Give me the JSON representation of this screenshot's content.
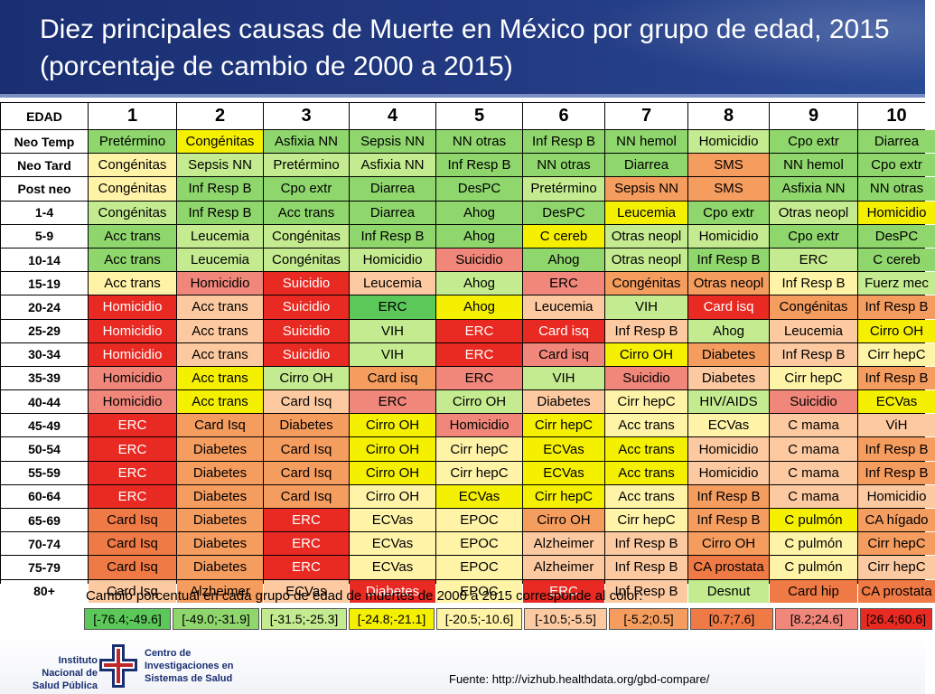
{
  "title": "Diez principales causas de Muerte en México por grupo de edad, 2015 (porcentaje de cambio de 2000 a 2015)",
  "table": {
    "header": [
      "EDAD",
      "1",
      "2",
      "3",
      "4",
      "5",
      "6",
      "7",
      "8",
      "9",
      "10"
    ],
    "palette": {
      "g1": "#5cc85a",
      "g2": "#8fd66c",
      "g3": "#c4eb8f",
      "y": "#f5f000",
      "yo": "#fff3a8",
      "lo": "#fcc9a0",
      "o": "#f59c5f",
      "do": "#f07a45",
      "pr": "#f0877a",
      "r": "#e82a22"
    },
    "rows": [
      {
        "age": "Neo Temp",
        "cells": [
          [
            "Pretérmino",
            "g2"
          ],
          [
            "Congénitas",
            "y"
          ],
          [
            "Asfixia NN",
            "g2"
          ],
          [
            "Sepsis NN",
            "g2"
          ],
          [
            "NN otras",
            "g2"
          ],
          [
            "Inf Resp B",
            "g2"
          ],
          [
            "NN hemol",
            "g2"
          ],
          [
            "Homicidio",
            "g3"
          ],
          [
            "Cpo extr",
            "g2"
          ],
          [
            "Diarrea",
            "g2"
          ]
        ]
      },
      {
        "age": "Neo Tard",
        "cells": [
          [
            "Congénitas",
            "yo"
          ],
          [
            "Sepsis NN",
            "g3"
          ],
          [
            "Pretérmino",
            "g3"
          ],
          [
            "Asfixia NN",
            "g3"
          ],
          [
            "Inf Resp B",
            "g2"
          ],
          [
            "NN otras",
            "g2"
          ],
          [
            "Diarrea",
            "g2"
          ],
          [
            "SMS",
            "o"
          ],
          [
            "NN hemol",
            "g2"
          ],
          [
            "Cpo extr",
            "g2"
          ]
        ]
      },
      {
        "age": "Post neo",
        "cells": [
          [
            "Congénitas",
            "yo"
          ],
          [
            "Inf Resp B",
            "g2"
          ],
          [
            "Cpo extr",
            "g2"
          ],
          [
            "Diarrea",
            "g2"
          ],
          [
            "DesPC",
            "g2"
          ],
          [
            "Pretérmino",
            "g3"
          ],
          [
            "Sepsis NN",
            "o"
          ],
          [
            "SMS",
            "o"
          ],
          [
            "Asfixia NN",
            "g2"
          ],
          [
            "NN otras",
            "g2"
          ]
        ]
      },
      {
        "age": "1-4",
        "cells": [
          [
            "Congénitas",
            "g3"
          ],
          [
            "Inf Resp B",
            "g2"
          ],
          [
            "Acc trans",
            "g2"
          ],
          [
            "Diarrea",
            "g2"
          ],
          [
            "Ahog",
            "g2"
          ],
          [
            "DesPC",
            "g2"
          ],
          [
            "Leucemia",
            "y"
          ],
          [
            "Cpo extr",
            "g2"
          ],
          [
            "Otras neopl",
            "g3"
          ],
          [
            "Homicidio",
            "y"
          ]
        ]
      },
      {
        "age": "5-9",
        "cells": [
          [
            "Acc trans",
            "g2"
          ],
          [
            "Leucemia",
            "g3"
          ],
          [
            "Congénitas",
            "g3"
          ],
          [
            "Inf Resp B",
            "g2"
          ],
          [
            "Ahog",
            "g2"
          ],
          [
            "C cereb",
            "y"
          ],
          [
            "Otras neopl",
            "g3"
          ],
          [
            "Homicidio",
            "g3"
          ],
          [
            "Cpo extr",
            "g2"
          ],
          [
            "DesPC",
            "g2"
          ]
        ]
      },
      {
        "age": "10-14",
        "cells": [
          [
            "Acc trans",
            "g2"
          ],
          [
            "Leucemia",
            "g3"
          ],
          [
            "Congénitas",
            "g3"
          ],
          [
            "Homicidio",
            "g3"
          ],
          [
            "Suicidio",
            "pr"
          ],
          [
            "Ahog",
            "g2"
          ],
          [
            "Otras neopl",
            "g3"
          ],
          [
            "Inf Resp B",
            "g2"
          ],
          [
            "ERC",
            "g3"
          ],
          [
            "C cereb",
            "g2"
          ]
        ]
      },
      {
        "age": "15-19",
        "cells": [
          [
            "Acc trans",
            "yo"
          ],
          [
            "Homicidio",
            "pr"
          ],
          [
            "Suicidio",
            "r"
          ],
          [
            "Leucemia",
            "lo"
          ],
          [
            "Ahog",
            "g3"
          ],
          [
            "ERC",
            "pr"
          ],
          [
            "Congénitas",
            "o"
          ],
          [
            "Otras neopl",
            "o"
          ],
          [
            "Inf Resp B",
            "yo"
          ],
          [
            "Fuerz mec",
            "g3"
          ]
        ]
      },
      {
        "age": "20-24",
        "cells": [
          [
            "Homicidio",
            "r"
          ],
          [
            "Acc trans",
            "lo"
          ],
          [
            "Suicidio",
            "r"
          ],
          [
            "ERC",
            "g1"
          ],
          [
            "Ahog",
            "y"
          ],
          [
            "Leucemia",
            "lo"
          ],
          [
            "VIH",
            "g3"
          ],
          [
            "Card isq",
            "r"
          ],
          [
            "Congénitas",
            "o"
          ],
          [
            "Inf Resp B",
            "o"
          ]
        ]
      },
      {
        "age": "25-29",
        "cells": [
          [
            "Homicidio",
            "r"
          ],
          [
            "Acc trans",
            "lo"
          ],
          [
            "Suicidio",
            "r"
          ],
          [
            "VIH",
            "g3"
          ],
          [
            "ERC",
            "r"
          ],
          [
            "Card isq",
            "r"
          ],
          [
            "Inf Resp B",
            "lo"
          ],
          [
            "Ahog",
            "g3"
          ],
          [
            "Leucemia",
            "lo"
          ],
          [
            "Cirro OH",
            "y"
          ]
        ]
      },
      {
        "age": "30-34",
        "cells": [
          [
            "Homicidio",
            "r"
          ],
          [
            "Acc trans",
            "lo"
          ],
          [
            "Suicidio",
            "r"
          ],
          [
            "VIH",
            "g3"
          ],
          [
            "ERC",
            "r"
          ],
          [
            "Card isq",
            "pr"
          ],
          [
            "Cirro OH",
            "y"
          ],
          [
            "Diabetes",
            "o"
          ],
          [
            "Inf Resp B",
            "lo"
          ],
          [
            "Cirr hepC",
            "yo"
          ]
        ]
      },
      {
        "age": "35-39",
        "cells": [
          [
            "Homicidio",
            "pr"
          ],
          [
            "Acc trans",
            "y"
          ],
          [
            "Cirro OH",
            "g3"
          ],
          [
            "Card isq",
            "o"
          ],
          [
            "ERC",
            "pr"
          ],
          [
            "VIH",
            "g3"
          ],
          [
            "Suicidio",
            "pr"
          ],
          [
            "Diabetes",
            "lo"
          ],
          [
            "Cirr hepC",
            "yo"
          ],
          [
            "Inf Resp B",
            "o"
          ]
        ]
      },
      {
        "age": "40-44",
        "cells": [
          [
            "Homicidio",
            "pr"
          ],
          [
            "Acc trans",
            "y"
          ],
          [
            "Card Isq",
            "lo"
          ],
          [
            "ERC",
            "pr"
          ],
          [
            "Cirro OH",
            "g3"
          ],
          [
            "Diabetes",
            "lo"
          ],
          [
            "Cirr hepC",
            "yo"
          ],
          [
            "HIV/AIDS",
            "g3"
          ],
          [
            "Suicidio",
            "pr"
          ],
          [
            "ECVas",
            "y"
          ]
        ]
      },
      {
        "age": "45-49",
        "cells": [
          [
            "ERC",
            "r"
          ],
          [
            "Card Isq",
            "o"
          ],
          [
            "Diabetes",
            "o"
          ],
          [
            "Cirro OH",
            "y"
          ],
          [
            "Homicidio",
            "pr"
          ],
          [
            "Cirr hepC",
            "y"
          ],
          [
            "Acc trans",
            "yo"
          ],
          [
            "ECVas",
            "yo"
          ],
          [
            "C mama",
            "lo"
          ],
          [
            "ViH",
            "lo"
          ]
        ]
      },
      {
        "age": "50-54",
        "cells": [
          [
            "ERC",
            "r"
          ],
          [
            "Diabetes",
            "o"
          ],
          [
            "Card Isq",
            "o"
          ],
          [
            "Cirro OH",
            "y"
          ],
          [
            "Cirr hepC",
            "yo"
          ],
          [
            "ECVas",
            "y"
          ],
          [
            "Acc trans",
            "y"
          ],
          [
            "Homicidio",
            "lo"
          ],
          [
            "C mama",
            "lo"
          ],
          [
            "Inf Resp B",
            "o"
          ]
        ]
      },
      {
        "age": "55-59",
        "cells": [
          [
            "ERC",
            "r"
          ],
          [
            "Diabetes",
            "o"
          ],
          [
            "Card Isq",
            "o"
          ],
          [
            "Cirro OH",
            "y"
          ],
          [
            "Cirr hepC",
            "yo"
          ],
          [
            "ECVas",
            "y"
          ],
          [
            "Acc trans",
            "y"
          ],
          [
            "Homicidio",
            "lo"
          ],
          [
            "C mama",
            "lo"
          ],
          [
            "Inf Resp B",
            "o"
          ]
        ]
      },
      {
        "age": "60-64",
        "cells": [
          [
            "ERC",
            "r"
          ],
          [
            "Diabetes",
            "o"
          ],
          [
            "Card Isq",
            "o"
          ],
          [
            "Cirro OH",
            "yo"
          ],
          [
            "ECVas",
            "y"
          ],
          [
            "Cirr hepC",
            "y"
          ],
          [
            "Acc trans",
            "yo"
          ],
          [
            "Inf Resp B",
            "o"
          ],
          [
            "C mama",
            "lo"
          ],
          [
            "Homicidio",
            "lo"
          ]
        ]
      },
      {
        "age": "65-69",
        "cells": [
          [
            "Card Isq",
            "do"
          ],
          [
            "Diabetes",
            "o"
          ],
          [
            "ERC",
            "r"
          ],
          [
            "ECVas",
            "yo"
          ],
          [
            "EPOC",
            "yo"
          ],
          [
            "Cirro OH",
            "o"
          ],
          [
            "Cirr hepC",
            "yo"
          ],
          [
            "Inf Resp B",
            "o"
          ],
          [
            "C pulmón",
            "y"
          ],
          [
            "CA hígado",
            "o"
          ]
        ]
      },
      {
        "age": "70-74",
        "cells": [
          [
            "Card Isq",
            "do"
          ],
          [
            "Diabetes",
            "o"
          ],
          [
            "ERC",
            "r"
          ],
          [
            "ECVas",
            "yo"
          ],
          [
            "EPOC",
            "yo"
          ],
          [
            "Alzheimer",
            "lo"
          ],
          [
            "Inf Resp B",
            "lo"
          ],
          [
            "Cirro OH",
            "o"
          ],
          [
            "C pulmón",
            "yo"
          ],
          [
            "Cirr hepC",
            "o"
          ]
        ]
      },
      {
        "age": "75-79",
        "cells": [
          [
            "Card Isq",
            "do"
          ],
          [
            "Diabetes",
            "o"
          ],
          [
            "ERC",
            "r"
          ],
          [
            "ECVas",
            "yo"
          ],
          [
            "EPOC",
            "yo"
          ],
          [
            "Alzheimer",
            "lo"
          ],
          [
            "Inf Resp B",
            "lo"
          ],
          [
            "CA prostata",
            "do"
          ],
          [
            "C pulmón",
            "yo"
          ],
          [
            "Cirr hepC",
            "lo"
          ]
        ]
      },
      {
        "age": "80+",
        "cells": [
          [
            "Card Isq",
            "lo"
          ],
          [
            "Alzheimer",
            "o"
          ],
          [
            "ECVas",
            "lo"
          ],
          [
            "Diabetes",
            "r"
          ],
          [
            "EPOC",
            "yo"
          ],
          [
            "ERC",
            "r"
          ],
          [
            "Inf Resp B",
            "lo"
          ],
          [
            "Desnut",
            "g3"
          ],
          [
            "Card hip",
            "do"
          ],
          [
            "CA prostata",
            "do"
          ]
        ]
      }
    ]
  },
  "legend": {
    "title": "Cambio porcentual en cada grupo de edad de muertes de 2000 a 2015 corresponde al color:",
    "items": [
      {
        "label": "[-76.4;-49.6]",
        "color": "#5cc85a"
      },
      {
        "label": "[-49.0;-31.9]",
        "color": "#8fd66c"
      },
      {
        "label": "[-31.5;-25.3]",
        "color": "#c4eb8f"
      },
      {
        "label": "[-24.8;-21.1]",
        "color": "#f5f000"
      },
      {
        "label": "[-20.5;-10.6]",
        "color": "#fff3a8"
      },
      {
        "label": "[-10.5;-5.5]",
        "color": "#fcc9a0"
      },
      {
        "label": "[-5.2;0.5]",
        "color": "#f59c5f"
      },
      {
        "label": "[0.7;7.6]",
        "color": "#f07a45"
      },
      {
        "label": "[8.2;24.6]",
        "color": "#f0877a"
      },
      {
        "label": "[26.4;60.6]",
        "color": "#e82a22"
      }
    ]
  },
  "footer": {
    "logo1": "Instituto Nacional de Salud Pública",
    "logo2": "Centro de Investigaciones en Sistemas de Salud",
    "source": "Fuente: http://vizhub.healthdata.org/gbd-compare/"
  }
}
